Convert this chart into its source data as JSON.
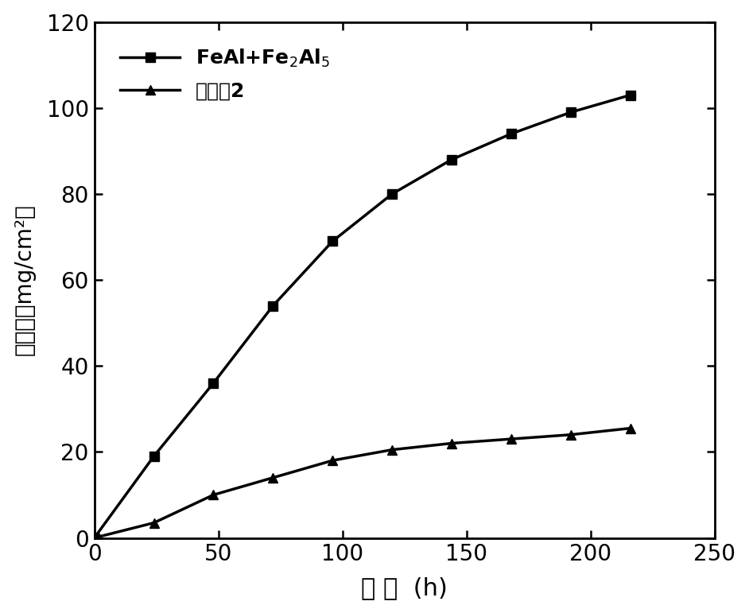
{
  "series1_x": [
    0,
    24,
    48,
    72,
    96,
    120,
    144,
    168,
    192,
    216
  ],
  "series1_y": [
    0,
    19,
    36,
    54,
    69,
    80,
    88,
    94,
    99,
    103
  ],
  "series2_x": [
    0,
    24,
    48,
    72,
    96,
    120,
    144,
    168,
    192,
    216
  ],
  "series2_y": [
    0,
    3.5,
    10,
    14,
    18,
    20.5,
    22,
    23,
    24,
    25.5
  ],
  "xlim": [
    0,
    250
  ],
  "ylim": [
    0,
    120
  ],
  "xticks": [
    0,
    50,
    100,
    150,
    200,
    250
  ],
  "yticks": [
    0,
    20,
    40,
    60,
    80,
    100,
    120
  ],
  "line_color": "#000000",
  "marker1": "s",
  "marker2": "^",
  "linewidth": 2.5,
  "markersize": 9,
  "background_color": "#ffffff",
  "xlabel_fontsize": 22,
  "ylabel_fontsize": 20,
  "tick_fontsize": 20,
  "legend_fontsize": 18
}
